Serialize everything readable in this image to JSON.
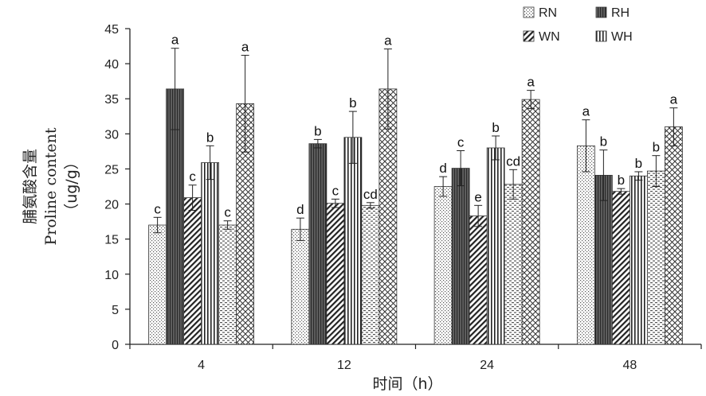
{
  "chart_data": {
    "type": "bar",
    "title": "",
    "xlabel": "时间（h）",
    "ylabel": [
      "脯氨酸含量",
      "Proline content",
      "（ug/g）"
    ],
    "categories": [
      "4",
      "12",
      "24",
      "48"
    ],
    "ylim": [
      0,
      45
    ],
    "yticks": [
      0,
      5,
      10,
      15,
      20,
      25,
      30,
      35,
      40,
      45
    ],
    "grid": false,
    "legend_position": "top-right",
    "series": [
      {
        "name": "RN",
        "pattern": "dots",
        "values": [
          17.0,
          16.4,
          22.5,
          28.3
        ],
        "errors": [
          1.1,
          1.6,
          1.4,
          3.7
        ],
        "labels": [
          "c",
          "d",
          "d",
          "a"
        ]
      },
      {
        "name": "RH",
        "pattern": "dark-vertical",
        "values": [
          36.4,
          28.6,
          25.1,
          24.1
        ],
        "errors": [
          5.8,
          0.6,
          2.5,
          3.6
        ],
        "labels": [
          "a",
          "b",
          "c",
          "b"
        ]
      },
      {
        "name": "WN",
        "pattern": "diagonal",
        "values": [
          20.9,
          20.1,
          18.3,
          21.8
        ],
        "errors": [
          1.8,
          0.6,
          1.5,
          0.4
        ],
        "labels": [
          "c",
          "c",
          "e",
          "b"
        ]
      },
      {
        "name": "WH",
        "pattern": "vertical",
        "values": [
          25.9,
          29.5,
          28.0,
          24.0
        ],
        "errors": [
          2.4,
          3.7,
          1.7,
          0.6
        ],
        "labels": [
          "b",
          "b",
          "b",
          "b"
        ]
      },
      {
        "name": "",
        "pattern": "dashes",
        "values": [
          17.0,
          19.8,
          22.8,
          24.7
        ],
        "errors": [
          0.6,
          0.4,
          2.1,
          2.2
        ],
        "labels": [
          "c",
          "cd",
          "cd",
          "b"
        ]
      },
      {
        "name": "",
        "pattern": "crosshatch",
        "values": [
          34.3,
          36.4,
          34.9,
          31.0
        ],
        "errors": [
          6.9,
          5.7,
          1.3,
          2.7
        ],
        "labels": [
          "a",
          "a",
          "a",
          "a"
        ]
      }
    ]
  }
}
